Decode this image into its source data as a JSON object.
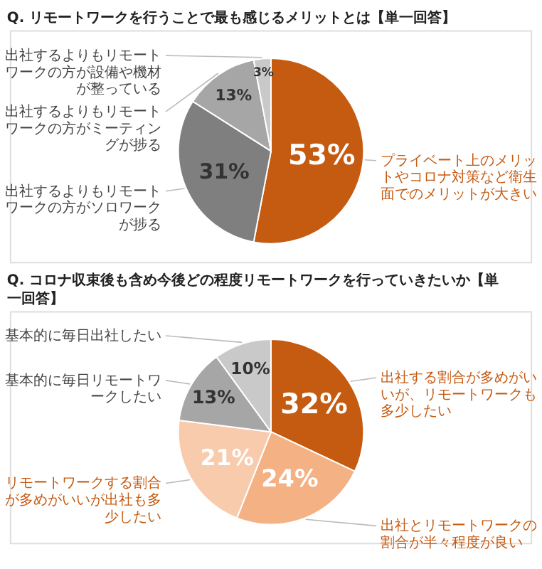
{
  "chart_data": [
    {
      "type": "pie",
      "title": "Q. リモートワークを行うことで最も感じるメリットとは【単一回答】",
      "categories": [
        "プライベート上のメリットやコロナ対策など衛生面でのメリットが大きい",
        "出社するよりもリモートワークの方がソロワークが捗る",
        "出社するよりもリモートワークの方がミーティングが捗る",
        "出社するよりもリモートワークの方が設備や機材が整っている"
      ],
      "values": [
        53,
        31,
        13,
        3
      ],
      "value_labels": [
        "53%",
        "31%",
        "13%",
        "3%"
      ],
      "colors": [
        "#c55a11",
        "#7f7f7f",
        "#a6a6a6",
        "#c9c9c9"
      ]
    },
    {
      "type": "pie",
      "title": "Q. コロナ収束後も含め今後どの程度リモートワークを行っていきたいか【単一回答】",
      "categories": [
        "出社する割合が多めがいいが、リモートワークも多少したい",
        "出社とリモートワークの割合が半々程度が良い",
        "リモートワークする割合が多めがいいが出社も多少したい",
        "基本的に毎日リモートワークしたい",
        "基本的に毎日出社したい"
      ],
      "values": [
        32,
        24,
        21,
        13,
        10
      ],
      "value_labels": [
        "32%",
        "24%",
        "21%",
        "13%",
        "10%"
      ],
      "colors": [
        "#c55a11",
        "#f4b183",
        "#f8cbad",
        "#a6a6a6",
        "#c9c9c9"
      ]
    }
  ]
}
